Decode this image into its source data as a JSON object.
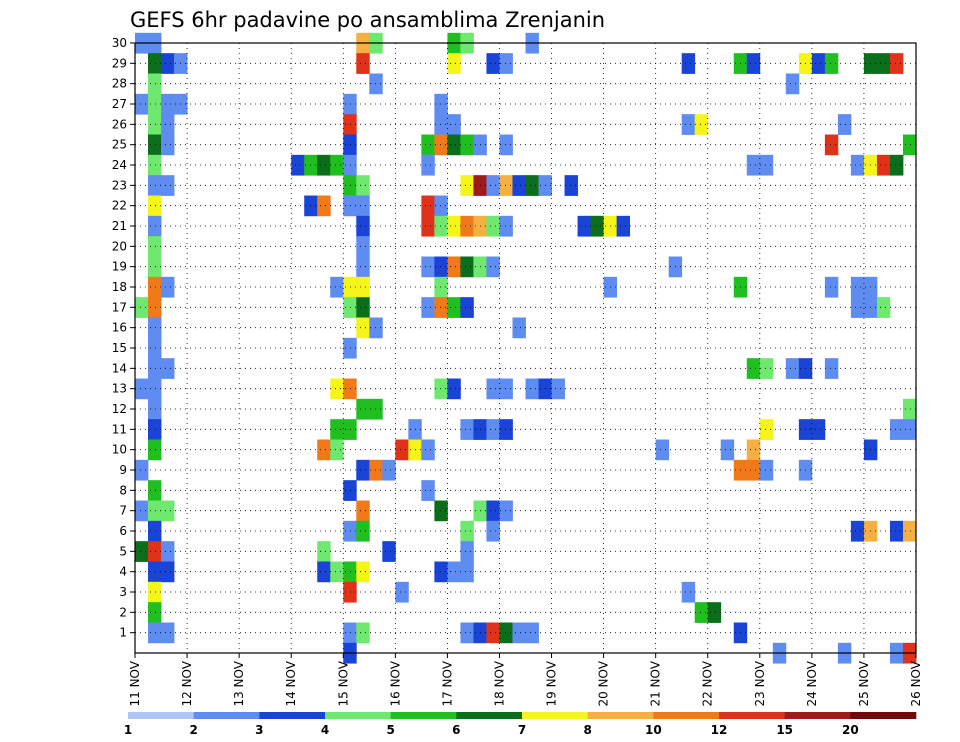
{
  "chart_data": {
    "type": "heatmap",
    "title": "GEFS 6hr padavine po ansamblima Zrenjanin",
    "xlabel": "",
    "ylabel": "",
    "x_ticks": [
      "11 NOV",
      "12 NOV",
      "13 NOV",
      "14 NOV",
      "15 NOV",
      "16 NOV",
      "17 NOV",
      "18 NOV",
      "19 NOV",
      "20 NOV",
      "21 NOV",
      "22 NOV",
      "23 NOV",
      "24 NOV",
      "25 NOV",
      "26 NOV"
    ],
    "y_ticks": [
      "1",
      "2",
      "3",
      "4",
      "5",
      "6",
      "7",
      "8",
      "9",
      "10",
      "11",
      "12",
      "13",
      "14",
      "15",
      "16",
      "17",
      "18",
      "19",
      "20",
      "21",
      "22",
      "23",
      "24",
      "25",
      "26",
      "27",
      "28",
      "29",
      "30"
    ],
    "x_range": [
      0,
      60
    ],
    "y_range": [
      0,
      30
    ],
    "grid": true,
    "colorbar": {
      "labels": [
        "1",
        "2",
        "3",
        "4",
        "5",
        "6",
        "7",
        "8",
        "10",
        "12",
        "15",
        "20"
      ],
      "colors": [
        "#adc6f5",
        "#5e8cf0",
        "#1a44d6",
        "#6ee86e",
        "#1fbf1f",
        "#0a6e1a",
        "#f5f51a",
        "#f5b041",
        "#f07a1a",
        "#e0321a",
        "#a01a1a",
        "#6e0a0a"
      ]
    },
    "cells": [
      [
        0,
        30,
        1
      ],
      [
        1,
        30,
        1
      ],
      [
        17,
        30,
        7
      ],
      [
        18,
        30,
        3
      ],
      [
        24,
        30,
        4
      ],
      [
        25,
        30,
        3
      ],
      [
        30,
        30,
        1
      ],
      [
        1,
        29,
        5
      ],
      [
        2,
        29,
        2
      ],
      [
        3,
        29,
        1
      ],
      [
        17,
        29,
        9
      ],
      [
        24,
        29,
        6
      ],
      [
        27,
        29,
        2
      ],
      [
        28,
        29,
        1
      ],
      [
        42,
        29,
        2
      ],
      [
        46,
        29,
        4
      ],
      [
        47,
        29,
        2
      ],
      [
        51,
        29,
        6
      ],
      [
        52,
        29,
        2
      ],
      [
        53,
        29,
        4
      ],
      [
        56,
        29,
        5
      ],
      [
        57,
        29,
        5
      ],
      [
        58,
        29,
        9
      ],
      [
        1,
        28,
        3
      ],
      [
        18,
        28,
        1
      ],
      [
        50,
        28,
        1
      ],
      [
        0,
        27,
        1
      ],
      [
        1,
        27,
        3
      ],
      [
        2,
        27,
        1
      ],
      [
        3,
        27,
        1
      ],
      [
        16,
        27,
        1
      ],
      [
        23,
        27,
        1
      ],
      [
        1,
        26,
        3
      ],
      [
        2,
        26,
        1
      ],
      [
        16,
        26,
        9
      ],
      [
        23,
        26,
        1
      ],
      [
        24,
        26,
        1
      ],
      [
        42,
        26,
        1
      ],
      [
        43,
        26,
        6
      ],
      [
        54,
        26,
        1
      ],
      [
        1,
        25,
        5
      ],
      [
        2,
        25,
        1
      ],
      [
        16,
        25,
        2
      ],
      [
        22,
        25,
        4
      ],
      [
        23,
        25,
        8
      ],
      [
        24,
        25,
        5
      ],
      [
        25,
        25,
        4
      ],
      [
        26,
        25,
        1
      ],
      [
        28,
        25,
        1
      ],
      [
        53,
        25,
        9
      ],
      [
        59,
        25,
        4
      ],
      [
        1,
        24,
        3
      ],
      [
        12,
        24,
        2
      ],
      [
        13,
        24,
        4
      ],
      [
        14,
        24,
        5
      ],
      [
        15,
        24,
        4
      ],
      [
        16,
        24,
        1
      ],
      [
        22,
        24,
        1
      ],
      [
        47,
        24,
        1
      ],
      [
        48,
        24,
        1
      ],
      [
        55,
        24,
        1
      ],
      [
        56,
        24,
        6
      ],
      [
        57,
        24,
        9
      ],
      [
        58,
        24,
        5
      ],
      [
        1,
        23,
        1
      ],
      [
        2,
        23,
        1
      ],
      [
        16,
        23,
        4
      ],
      [
        17,
        23,
        3
      ],
      [
        25,
        23,
        6
      ],
      [
        26,
        23,
        10
      ],
      [
        27,
        23,
        1
      ],
      [
        28,
        23,
        7
      ],
      [
        29,
        23,
        2
      ],
      [
        30,
        23,
        5
      ],
      [
        31,
        23,
        1
      ],
      [
        33,
        23,
        2
      ],
      [
        1,
        22,
        6
      ],
      [
        13,
        22,
        2
      ],
      [
        14,
        22,
        8
      ],
      [
        16,
        22,
        1
      ],
      [
        17,
        22,
        1
      ],
      [
        22,
        22,
        9
      ],
      [
        23,
        22,
        1
      ],
      [
        1,
        21,
        1
      ],
      [
        17,
        21,
        2
      ],
      [
        22,
        21,
        9
      ],
      [
        23,
        21,
        3
      ],
      [
        24,
        21,
        6
      ],
      [
        25,
        21,
        8
      ],
      [
        26,
        21,
        7
      ],
      [
        27,
        21,
        3
      ],
      [
        28,
        21,
        1
      ],
      [
        34,
        21,
        2
      ],
      [
        35,
        21,
        5
      ],
      [
        36,
        21,
        6
      ],
      [
        37,
        21,
        2
      ],
      [
        1,
        20,
        3
      ],
      [
        17,
        20,
        1
      ],
      [
        1,
        19,
        3
      ],
      [
        17,
        19,
        1
      ],
      [
        22,
        19,
        1
      ],
      [
        23,
        19,
        2
      ],
      [
        24,
        19,
        8
      ],
      [
        25,
        19,
        5
      ],
      [
        26,
        19,
        3
      ],
      [
        27,
        19,
        1
      ],
      [
        41,
        19,
        1
      ],
      [
        1,
        18,
        8
      ],
      [
        2,
        18,
        1
      ],
      [
        15,
        18,
        1
      ],
      [
        16,
        18,
        6
      ],
      [
        17,
        18,
        6
      ],
      [
        23,
        18,
        3
      ],
      [
        36,
        18,
        1
      ],
      [
        46,
        18,
        4
      ],
      [
        53,
        18,
        1
      ],
      [
        55,
        18,
        1
      ],
      [
        56,
        18,
        1
      ],
      [
        0,
        17,
        3
      ],
      [
        1,
        17,
        8
      ],
      [
        16,
        17,
        3
      ],
      [
        17,
        17,
        5
      ],
      [
        22,
        17,
        1
      ],
      [
        23,
        17,
        8
      ],
      [
        24,
        17,
        4
      ],
      [
        25,
        17,
        2
      ],
      [
        55,
        17,
        1
      ],
      [
        56,
        17,
        1
      ],
      [
        57,
        17,
        3
      ],
      [
        1,
        16,
        1
      ],
      [
        17,
        16,
        6
      ],
      [
        18,
        16,
        1
      ],
      [
        29,
        16,
        1
      ],
      [
        1,
        15,
        1
      ],
      [
        16,
        15,
        1
      ],
      [
        1,
        14,
        1
      ],
      [
        2,
        14,
        1
      ],
      [
        47,
        14,
        4
      ],
      [
        48,
        14,
        3
      ],
      [
        50,
        14,
        1
      ],
      [
        51,
        14,
        2
      ],
      [
        53,
        14,
        1
      ],
      [
        0,
        13,
        1
      ],
      [
        1,
        13,
        1
      ],
      [
        15,
        13,
        6
      ],
      [
        16,
        13,
        8
      ],
      [
        23,
        13,
        3
      ],
      [
        24,
        13,
        2
      ],
      [
        27,
        13,
        1
      ],
      [
        28,
        13,
        1
      ],
      [
        30,
        13,
        1
      ],
      [
        31,
        13,
        2
      ],
      [
        32,
        13,
        1
      ],
      [
        1,
        12,
        1
      ],
      [
        17,
        12,
        4
      ],
      [
        18,
        12,
        4
      ],
      [
        59,
        12,
        3
      ],
      [
        1,
        11,
        2
      ],
      [
        15,
        11,
        4
      ],
      [
        16,
        11,
        4
      ],
      [
        21,
        11,
        1
      ],
      [
        25,
        11,
        1
      ],
      [
        26,
        11,
        2
      ],
      [
        27,
        11,
        1
      ],
      [
        28,
        11,
        2
      ],
      [
        48,
        11,
        6
      ],
      [
        51,
        11,
        2
      ],
      [
        52,
        11,
        2
      ],
      [
        58,
        11,
        1
      ],
      [
        59,
        11,
        1
      ],
      [
        1,
        10,
        4
      ],
      [
        14,
        10,
        8
      ],
      [
        15,
        10,
        3
      ],
      [
        20,
        10,
        9
      ],
      [
        21,
        10,
        6
      ],
      [
        22,
        10,
        1
      ],
      [
        40,
        10,
        1
      ],
      [
        45,
        10,
        1
      ],
      [
        47,
        10,
        7
      ],
      [
        56,
        10,
        2
      ],
      [
        0,
        9,
        1
      ],
      [
        17,
        9,
        2
      ],
      [
        18,
        9,
        8
      ],
      [
        19,
        9,
        1
      ],
      [
        46,
        9,
        8
      ],
      [
        47,
        9,
        8
      ],
      [
        48,
        9,
        1
      ],
      [
        51,
        9,
        1
      ],
      [
        1,
        8,
        4
      ],
      [
        16,
        8,
        2
      ],
      [
        22,
        8,
        1
      ],
      [
        0,
        7,
        1
      ],
      [
        1,
        7,
        3
      ],
      [
        2,
        7,
        3
      ],
      [
        17,
        7,
        8
      ],
      [
        23,
        7,
        5
      ],
      [
        26,
        7,
        3
      ],
      [
        27,
        7,
        2
      ],
      [
        28,
        7,
        1
      ],
      [
        1,
        6,
        2
      ],
      [
        16,
        6,
        1
      ],
      [
        17,
        6,
        4
      ],
      [
        25,
        6,
        3
      ],
      [
        27,
        6,
        1
      ],
      [
        55,
        6,
        2
      ],
      [
        56,
        6,
        7
      ],
      [
        58,
        6,
        2
      ],
      [
        59,
        6,
        7
      ],
      [
        0,
        5,
        5
      ],
      [
        1,
        5,
        9
      ],
      [
        2,
        5,
        1
      ],
      [
        14,
        5,
        3
      ],
      [
        19,
        5,
        2
      ],
      [
        25,
        5,
        1
      ],
      [
        1,
        4,
        2
      ],
      [
        2,
        4,
        2
      ],
      [
        14,
        4,
        2
      ],
      [
        15,
        4,
        3
      ],
      [
        16,
        4,
        4
      ],
      [
        17,
        4,
        6
      ],
      [
        23,
        4,
        2
      ],
      [
        24,
        4,
        1
      ],
      [
        25,
        4,
        1
      ],
      [
        1,
        3,
        6
      ],
      [
        16,
        3,
        9
      ],
      [
        20,
        3,
        1
      ],
      [
        42,
        3,
        1
      ],
      [
        1,
        2,
        4
      ],
      [
        43,
        2,
        4
      ],
      [
        44,
        2,
        5
      ],
      [
        1,
        1,
        1
      ],
      [
        2,
        1,
        1
      ],
      [
        16,
        1,
        1
      ],
      [
        17,
        1,
        3
      ],
      [
        25,
        1,
        1
      ],
      [
        26,
        1,
        2
      ],
      [
        27,
        1,
        9
      ],
      [
        28,
        1,
        5
      ],
      [
        29,
        1,
        1
      ],
      [
        30,
        1,
        1
      ],
      [
        46,
        1,
        2
      ],
      [
        16,
        0,
        2
      ],
      [
        49,
        0,
        1
      ],
      [
        54,
        0,
        1
      ],
      [
        58,
        0,
        1
      ],
      [
        59,
        0,
        9
      ]
    ]
  }
}
